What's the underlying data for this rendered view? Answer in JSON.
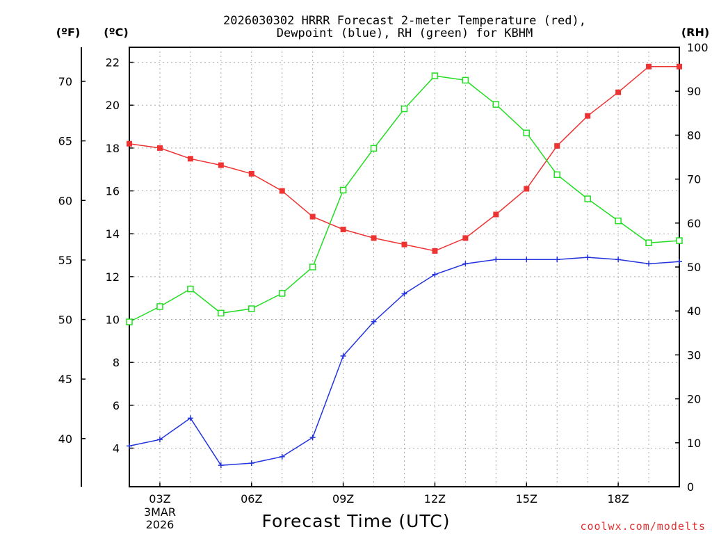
{
  "chart_data": {
    "type": "line",
    "title_lines": [
      "2026030302 HRRR Forecast 2-meter Temperature (red),",
      "Dewpoint (blue), RH (green) for KBHM"
    ],
    "xlabel": "Forecast Time (UTC)",
    "credit": "coolwx.com/modelts",
    "units": {
      "fahrenheit": "(ºF)",
      "celsius": "(ºC)",
      "rh": "(RH)"
    },
    "x_range": [
      2,
      20
    ],
    "x_ticks": [
      {
        "x": 3,
        "label": "03Z",
        "sub": [
          "3MAR",
          "2026"
        ]
      },
      {
        "x": 6,
        "label": "06Z",
        "sub": []
      },
      {
        "x": 9,
        "label": "09Z",
        "sub": []
      },
      {
        "x": 12,
        "label": "12Z",
        "sub": []
      },
      {
        "x": 15,
        "label": "15Z",
        "sub": []
      },
      {
        "x": 18,
        "label": "18Z",
        "sub": []
      }
    ],
    "celsius_axis": {
      "range": [
        2.2,
        22.7
      ],
      "ticks": [
        4,
        6,
        8,
        10,
        12,
        14,
        16,
        18,
        20,
        22
      ]
    },
    "fahrenheit_axis": {
      "ticks": [
        40,
        45,
        50,
        55,
        60,
        65,
        70
      ]
    },
    "rh_axis": {
      "range": [
        0,
        100
      ],
      "ticks": [
        0,
        10,
        20,
        30,
        40,
        50,
        60,
        70,
        80,
        90,
        100
      ]
    },
    "hours": [
      2,
      3,
      4,
      5,
      6,
      7,
      8,
      9,
      10,
      11,
      12,
      13,
      14,
      15,
      16,
      17,
      18,
      19,
      20
    ],
    "series": [
      {
        "name": "Temperature",
        "axis": "celsius",
        "color": "#ee3333",
        "marker": "filled-square",
        "values": [
          18.2,
          18.0,
          17.5,
          17.2,
          16.8,
          16.0,
          14.8,
          14.2,
          13.8,
          13.5,
          13.2,
          13.8,
          14.9,
          16.1,
          18.1,
          19.5,
          20.6,
          21.8,
          21.8
        ]
      },
      {
        "name": "Dewpoint",
        "axis": "celsius",
        "color": "#2233dd",
        "marker": "plus",
        "values": [
          4.1,
          4.4,
          5.4,
          3.2,
          3.3,
          3.6,
          4.5,
          8.3,
          9.9,
          11.2,
          12.1,
          12.6,
          12.8,
          12.8,
          12.8,
          12.9,
          12.8,
          12.6,
          12.7
        ]
      },
      {
        "name": "Relative Humidity",
        "axis": "rh",
        "color": "#22dd22",
        "marker": "open-square",
        "values": [
          37.5,
          41,
          45,
          39.5,
          40.5,
          44,
          50,
          67.5,
          77,
          86,
          93.5,
          92.5,
          87,
          80.5,
          71,
          65.5,
          60.5,
          55.5,
          56
        ]
      }
    ]
  }
}
